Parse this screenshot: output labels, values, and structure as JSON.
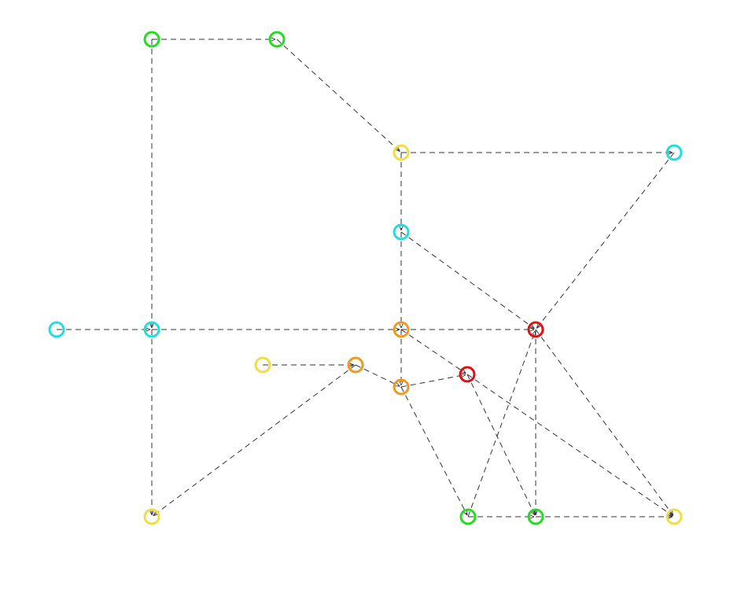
{
  "nodes": [
    {
      "color": "#22dd22"
    },
    {
      "color": "#22dd22"
    },
    {
      "color": "#eedd44"
    },
    {
      "color": "#22dddd"
    },
    {
      "color": "#22dddd"
    },
    {
      "color": "#dd1111"
    },
    {
      "color": "#22dddd"
    },
    {
      "color": "#22dddd"
    },
    {
      "color": "#ee9922"
    },
    {
      "color": "#eedd44"
    },
    {
      "color": "#ee9922"
    },
    {
      "color": "#dd1111"
    },
    {
      "color": "#ee9922"
    },
    {
      "color": "#eedd44"
    },
    {
      "color": "#22dd22"
    },
    {
      "color": "#22dd22"
    },
    {
      "color": "#eedd44"
    }
  ],
  "edges": [
    {
      "from": 0,
      "to": 1
    },
    {
      "from": 0,
      "to": 7
    },
    {
      "from": 1,
      "to": 2
    },
    {
      "from": 2,
      "to": 3
    },
    {
      "from": 2,
      "to": 4
    },
    {
      "from": 3,
      "to": 5
    },
    {
      "from": 4,
      "to": 5
    },
    {
      "from": 6,
      "to": 7
    },
    {
      "from": 7,
      "to": 8
    },
    {
      "from": 8,
      "to": 5
    },
    {
      "from": 7,
      "to": 13
    },
    {
      "from": 4,
      "to": 8
    },
    {
      "from": 8,
      "to": 12
    },
    {
      "from": 9,
      "to": 10
    },
    {
      "from": 10,
      "to": 13
    },
    {
      "from": 10,
      "to": 12
    },
    {
      "from": 12,
      "to": 11
    },
    {
      "from": 8,
      "to": 11
    },
    {
      "from": 11,
      "to": 15
    },
    {
      "from": 11,
      "to": 16
    },
    {
      "from": 12,
      "to": 14
    },
    {
      "from": 14,
      "to": 5
    },
    {
      "from": 5,
      "to": 15
    },
    {
      "from": 5,
      "to": 16
    },
    {
      "from": 14,
      "to": 15
    },
    {
      "from": 15,
      "to": 16
    }
  ]
}
